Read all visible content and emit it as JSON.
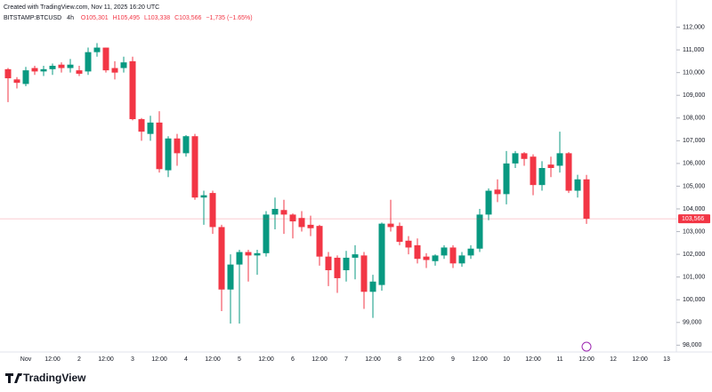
{
  "header": {
    "created": "Created with TradingView.com, Nov 11, 2025 16:20 UTC",
    "symbol": "BITSTAMP:BTCUSD",
    "interval": "4h",
    "open": "O105,301",
    "high": "H105,495",
    "low": "L103,338",
    "close": "C103,566",
    "change": "−1,735 (−1.65%)"
  },
  "footer": {
    "brand": "TradingView"
  },
  "chart_data": {
    "type": "candlestick",
    "categories": [
      null,
      null,
      "Nov",
      null,
      null,
      "12:00",
      null,
      null,
      "2",
      null,
      null,
      "12:00",
      null,
      null,
      "3",
      null,
      null,
      "12:00",
      null,
      null,
      "4",
      null,
      null,
      "12:00",
      null,
      null,
      "5",
      null,
      null,
      "12:00",
      null,
      null,
      "6",
      null,
      null,
      "12:00",
      null,
      null,
      "7",
      null,
      null,
      "12:00",
      null,
      null,
      "8",
      null,
      null,
      "12:00",
      null,
      null,
      "9",
      null,
      null,
      "12:00",
      null,
      null,
      "10",
      null,
      null,
      "12:00",
      null,
      null,
      "11",
      null,
      null,
      "12:00",
      null,
      null,
      "12",
      null,
      null,
      "12:00",
      null,
      null,
      "13"
    ],
    "open": [
      110150,
      109700,
      109500,
      110200,
      110050,
      110150,
      110350,
      110200,
      110100,
      110050,
      110900,
      111100,
      110200,
      110200,
      110500,
      107950,
      107300,
      107800,
      105700,
      107100,
      106450,
      107200,
      104500,
      104700,
      103200,
      100450,
      101550,
      102100,
      101950,
      102050,
      103750,
      103950,
      103750,
      103600,
      103300,
      103250,
      101900,
      101850,
      101300,
      101850,
      101950,
      100350,
      100650,
      103350,
      103250,
      102600,
      102400,
      101900,
      101700,
      101950,
      102300,
      101600,
      101950,
      102250,
      103750,
      104850,
      104650,
      106000,
      106450,
      106300,
      105050,
      105950,
      105900,
      106450,
      104800,
      105301,
      null,
      null,
      null,
      null,
      null,
      null,
      null,
      null,
      null
    ],
    "high": [
      110200,
      109800,
      110250,
      110300,
      110300,
      110400,
      110450,
      110600,
      110300,
      111100,
      111300,
      111100,
      110500,
      110700,
      110700,
      108000,
      108100,
      108300,
      107200,
      107300,
      107250,
      107300,
      104800,
      104800,
      103300,
      102000,
      102200,
      102200,
      102200,
      103900,
      104500,
      104400,
      103800,
      103900,
      103700,
      103300,
      102100,
      101950,
      102150,
      102400,
      102100,
      101100,
      103400,
      104400,
      103400,
      102800,
      102700,
      102050,
      102000,
      102400,
      102400,
      102100,
      102400,
      104000,
      104900,
      105300,
      106550,
      106550,
      106500,
      106400,
      106100,
      106300,
      107400,
      106500,
      105500,
      105495,
      null,
      null,
      null,
      null,
      null,
      null,
      null,
      null,
      null
    ],
    "low": [
      108700,
      109300,
      109400,
      109900,
      109850,
      109900,
      110000,
      110000,
      109850,
      109900,
      110700,
      110000,
      109700,
      110000,
      107900,
      107000,
      107000,
      105600,
      105400,
      105900,
      106300,
      104400,
      103300,
      102900,
      99500,
      98950,
      98950,
      100800,
      101100,
      101900,
      103100,
      102900,
      102700,
      103000,
      102800,
      101500,
      100600,
      100300,
      100800,
      100900,
      99600,
      99200,
      100400,
      103000,
      102400,
      102000,
      101600,
      101400,
      101500,
      101800,
      101400,
      101450,
      101800,
      102100,
      103500,
      104300,
      104200,
      105800,
      105900,
      104600,
      104800,
      105400,
      105600,
      104700,
      104500,
      103338,
      null,
      null,
      null,
      null,
      null,
      null,
      null,
      null,
      null
    ],
    "close": [
      109750,
      109550,
      110100,
      110050,
      110150,
      110300,
      110200,
      110350,
      109950,
      110900,
      111100,
      110100,
      110000,
      110450,
      107950,
      107400,
      107800,
      105750,
      107100,
      106450,
      107200,
      104500,
      104600,
      103200,
      100450,
      101550,
      102100,
      101950,
      102050,
      103750,
      104000,
      103750,
      103450,
      103200,
      103150,
      101900,
      101300,
      100950,
      101850,
      102000,
      100350,
      100800,
      103350,
      103200,
      102550,
      102300,
      101800,
      101750,
      101950,
      102300,
      101600,
      101950,
      102250,
      103750,
      104800,
      104650,
      106000,
      106450,
      106200,
      105050,
      105800,
      105800,
      106450,
      104800,
      105300,
      103566,
      null,
      null,
      null,
      null,
      null,
      null,
      null,
      null,
      null
    ],
    "up_color": "#089981",
    "down_color": "#f23645",
    "last_price": {
      "value": 103566,
      "label": "103,566"
    },
    "ylim": [
      97700,
      113000
    ],
    "yticks": [
      {
        "value": 98000,
        "label": "98,000"
      },
      {
        "value": 99000,
        "label": "99,000"
      },
      {
        "value": 100000,
        "label": "100,000"
      },
      {
        "value": 101000,
        "label": "101,000"
      },
      {
        "value": 102000,
        "label": "102,000"
      },
      {
        "value": 103000,
        "label": "103,000"
      },
      {
        "value": 104000,
        "label": "104,000"
      },
      {
        "value": 105000,
        "label": "105,000"
      },
      {
        "value": 106000,
        "label": "106,000"
      },
      {
        "value": 107000,
        "label": "107,000"
      },
      {
        "value": 108000,
        "label": "108,000"
      },
      {
        "value": 109000,
        "label": "109,000"
      },
      {
        "value": 110000,
        "label": "110,000"
      },
      {
        "value": 111000,
        "label": "111,000"
      },
      {
        "value": 112000,
        "label": "112,000"
      }
    ],
    "grid": false
  }
}
